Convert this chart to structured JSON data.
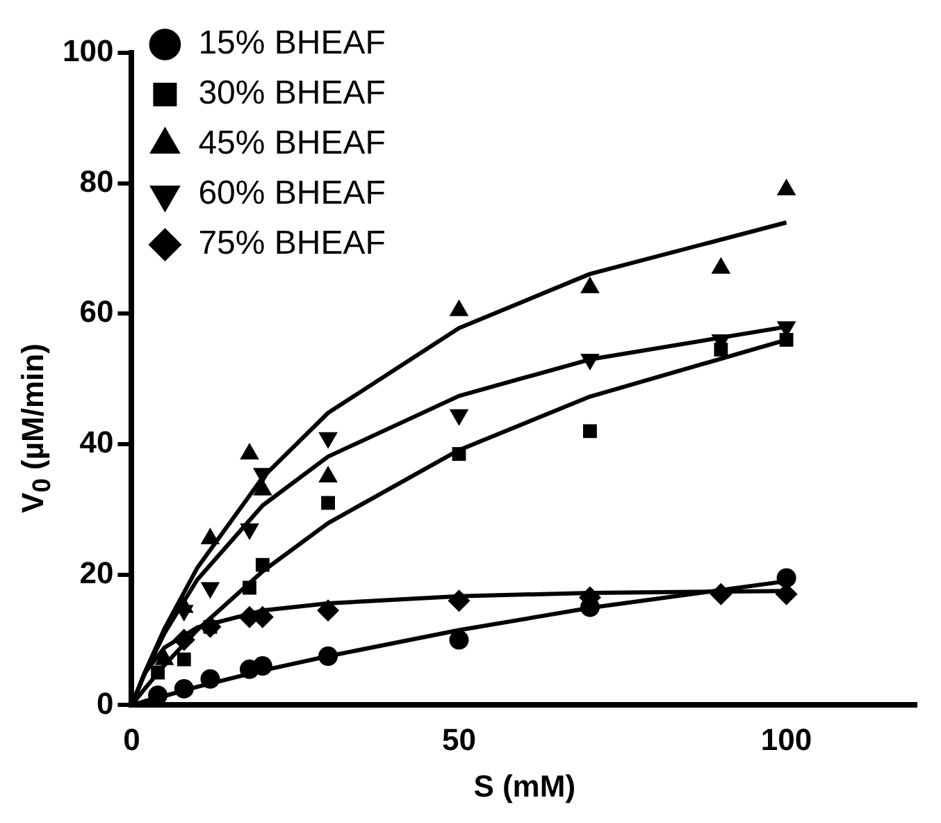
{
  "chart_data": {
    "type": "scatter",
    "xlabel": "S (mM)",
    "ylabel": "V$_{0}$ (µM/min)",
    "xlim": [
      0,
      120
    ],
    "xticks": [
      0,
      50,
      100
    ],
    "ylim": [
      0,
      100
    ],
    "yticks": [
      0,
      20,
      40,
      60,
      80,
      100
    ],
    "grid": false,
    "legend": "top left",
    "series": [
      {
        "name": "15% BHEAF",
        "color": "#000000",
        "marker": "circle",
        "x": [
          4,
          8,
          12,
          18,
          20,
          30,
          50,
          70,
          100
        ],
        "values": [
          1.5,
          2.5,
          4,
          5.5,
          6,
          7.5,
          10,
          15,
          19.5
        ]
      },
      {
        "name": "30% BHEAF",
        "color": "#000000",
        "marker": "square",
        "x": [
          4,
          8,
          12,
          18,
          20,
          30,
          50,
          70,
          90,
          100
        ],
        "values": [
          5,
          7,
          12,
          18,
          21.5,
          31,
          38.5,
          42,
          54.5,
          56
        ]
      },
      {
        "name": "45% BHEAF",
        "color": "#000000",
        "marker": "triangle",
        "x": [
          5,
          8,
          12,
          18,
          20,
          30,
          50,
          70,
          90,
          100
        ],
        "values": [
          7,
          15,
          25.5,
          38.5,
          33,
          35,
          60.5,
          64,
          67,
          79
        ]
      },
      {
        "name": "60% BHEAF",
        "color": "#000000",
        "marker": "triangle-down",
        "x": [
          8,
          12,
          18,
          20,
          30,
          50,
          70,
          90,
          100
        ],
        "values": [
          14.5,
          18,
          27,
          35.5,
          41,
          44.5,
          53,
          56,
          58
        ]
      },
      {
        "name": "75% BHEAF",
        "color": "#000000",
        "marker": "diamond",
        "x": [
          8,
          12,
          18,
          20,
          30,
          50,
          70,
          90,
          100
        ],
        "values": [
          10,
          12,
          13.5,
          13.5,
          14.5,
          16,
          16.5,
          17,
          17
        ]
      },
      {
        "type": "line",
        "color": "#000000",
        "marker": "none",
        "x": [
          0,
          2,
          5,
          10,
          20,
          30,
          50,
          70,
          100
        ],
        "values": [
          0,
          0.6,
          1.4,
          2.8,
          5.3,
          7.5,
          11.5,
          14.9,
          19
        ]
      },
      {
        "type": "line",
        "color": "#000000",
        "marker": "none",
        "x": [
          0,
          2,
          5,
          10,
          20,
          30,
          50,
          70,
          100
        ],
        "values": [
          0,
          2.5,
          6.1,
          11.5,
          20.5,
          27.9,
          39.1,
          47.3,
          56
        ]
      },
      {
        "type": "line",
        "color": "#000000",
        "marker": "none",
        "x": [
          0,
          2,
          5,
          10,
          20,
          30,
          50,
          70,
          100
        ],
        "values": [
          0,
          5,
          11.7,
          21,
          34.9,
          44.8,
          57.8,
          66.1,
          74
        ]
      },
      {
        "type": "line",
        "color": "#000000",
        "marker": "none",
        "x": [
          0,
          2,
          5,
          10,
          20,
          30,
          50,
          70,
          100
        ],
        "values": [
          0,
          4.8,
          11,
          19.2,
          30.6,
          38.1,
          47.4,
          53,
          58
        ]
      },
      {
        "type": "line",
        "color": "#000000",
        "marker": "none",
        "x": [
          0,
          2,
          5,
          10,
          20,
          30,
          50,
          70,
          100
        ],
        "values": [
          0,
          4.9,
          8.8,
          11.9,
          14.5,
          15.6,
          16.7,
          17.2,
          17.5
        ]
      }
    ]
  }
}
